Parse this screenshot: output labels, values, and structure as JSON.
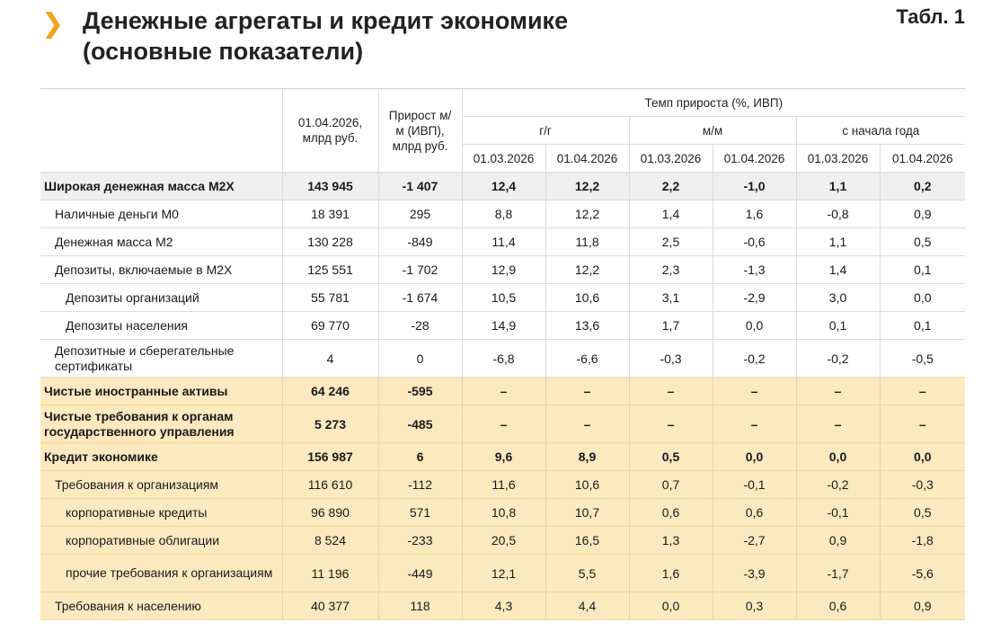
{
  "header": {
    "title_line1": "Денежные агрегаты и кредит экономике",
    "title_line2": "(основные показатели)",
    "table_number": "Табл. 1",
    "chevron": "chevron-right-icon"
  },
  "columns": {
    "col1": "01.04.2026, млрд руб.",
    "col2": "Прирост м/м (ИВП), млрд руб.",
    "rate_group": "Темп прироста (%, ИВП)",
    "yy": "г/г",
    "mm": "м/м",
    "ytd": "с начала года",
    "d1": "01.03.2026",
    "d2": "01.04.2026"
  },
  "rows": [
    {
      "label": "Широкая денежная масса М2Х",
      "v": [
        "143 945",
        "-1 407",
        "12,4",
        "12,2",
        "2,2",
        "-1,0",
        "1,1",
        "0,2"
      ]
    },
    {
      "label": "Наличные деньги М0",
      "v": [
        "18 391",
        "295",
        "8,8",
        "12,2",
        "1,4",
        "1,6",
        "-0,8",
        "0,9"
      ]
    },
    {
      "label": "Денежная масса М2",
      "v": [
        "130 228",
        "-849",
        "11,4",
        "11,8",
        "2,5",
        "-0,6",
        "1,1",
        "0,5"
      ]
    },
    {
      "label": "Депозиты, включаемые в М2Х",
      "v": [
        "125 551",
        "-1 702",
        "12,9",
        "12,2",
        "2,3",
        "-1,3",
        "1,4",
        "0,1"
      ]
    },
    {
      "label": "Депозиты организаций",
      "v": [
        "55 781",
        "-1 674",
        "10,5",
        "10,6",
        "3,1",
        "-2,9",
        "3,0",
        "0,0"
      ]
    },
    {
      "label": "Депозиты населения",
      "v": [
        "69 770",
        "-28",
        "14,9",
        "13,6",
        "1,7",
        "0,0",
        "0,1",
        "0,1"
      ]
    },
    {
      "label": "Депозитные и сберегательные сертификаты",
      "v": [
        "4",
        "0",
        "-6,8",
        "-6,6",
        "-0,3",
        "-0,2",
        "-0,2",
        "-0,5"
      ]
    },
    {
      "label": "Чистые иностранные активы",
      "v": [
        "64 246",
        "-595",
        "–",
        "–",
        "–",
        "–",
        "–",
        "–"
      ]
    },
    {
      "label": "Чистые требования к органам государственного управления",
      "v": [
        "5 273",
        "-485",
        "–",
        "–",
        "–",
        "–",
        "–",
        "–"
      ]
    },
    {
      "label": "Кредит экономике",
      "v": [
        "156 987",
        "6",
        "9,6",
        "8,9",
        "0,5",
        "0,0",
        "0,0",
        "0,0"
      ]
    },
    {
      "label": "Требования к организациям",
      "v": [
        "116 610",
        "-112",
        "11,6",
        "10,6",
        "0,7",
        "-0,1",
        "-0,2",
        "-0,3"
      ]
    },
    {
      "label": "корпоративные кредиты",
      "v": [
        "96 890",
        "571",
        "10,8",
        "10,7",
        "0,6",
        "0,6",
        "-0,1",
        "0,5"
      ]
    },
    {
      "label": "корпоративные облигации",
      "v": [
        "8 524",
        "-233",
        "20,5",
        "16,5",
        "1,3",
        "-2,7",
        "0,9",
        "-1,8"
      ]
    },
    {
      "label": "прочие требования к организациям",
      "v": [
        "11 196",
        "-449",
        "12,1",
        "5,5",
        "1,6",
        "-3,9",
        "-1,7",
        "-5,6"
      ]
    },
    {
      "label": "Требования к населению",
      "v": [
        "40 377",
        "118",
        "4,3",
        "4,4",
        "0,0",
        "0,3",
        "0,6",
        "0,9"
      ]
    }
  ],
  "row_styles": [
    {
      "cls": "bold gray",
      "indent": "",
      "h": 31
    },
    {
      "cls": "",
      "indent": "i1",
      "h": 31
    },
    {
      "cls": "",
      "indent": "i1",
      "h": 31
    },
    {
      "cls": "",
      "indent": "i1",
      "h": 31
    },
    {
      "cls": "",
      "indent": "i2",
      "h": 31
    },
    {
      "cls": "",
      "indent": "i2",
      "h": 31
    },
    {
      "cls": "",
      "indent": "i1",
      "h": 42
    },
    {
      "cls": "bold peach",
      "indent": "",
      "h": 31
    },
    {
      "cls": "bold peach",
      "indent": "",
      "h": 42
    },
    {
      "cls": "bold peach",
      "indent": "",
      "h": 31
    },
    {
      "cls": "peach",
      "indent": "i1",
      "h": 31
    },
    {
      "cls": "peach",
      "indent": "i2",
      "h": 31
    },
    {
      "cls": "peach",
      "indent": "i2",
      "h": 31
    },
    {
      "cls": "peach",
      "indent": "i2",
      "h": 42
    },
    {
      "cls": "peach",
      "indent": "i1",
      "h": 31
    }
  ],
  "colors": {
    "accent": "#f5a21b",
    "highlight": "#fde9bf",
    "gray_row": "#efefef"
  }
}
